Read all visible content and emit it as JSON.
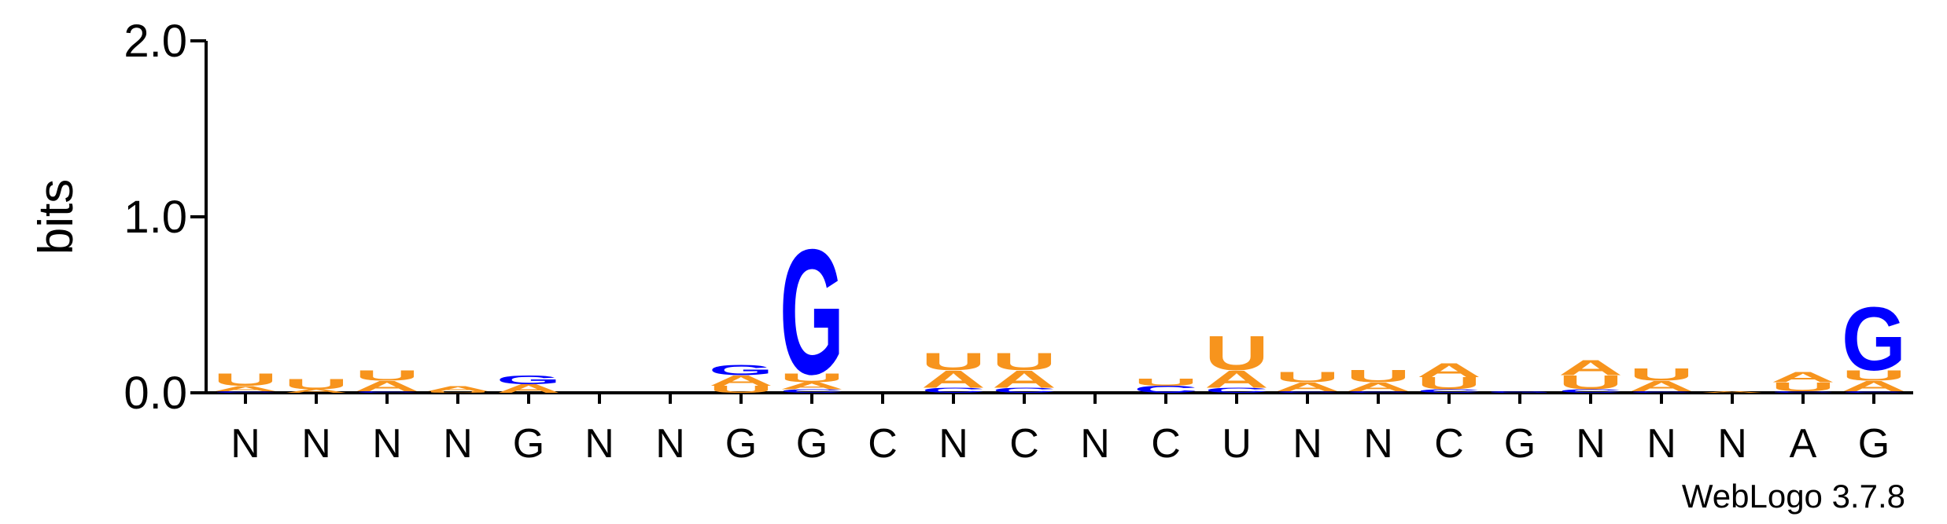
{
  "chart_data": {
    "type": "logo",
    "ylabel": "bits",
    "footer": "WebLogo 3.7.8",
    "ylim": [
      0,
      2
    ],
    "yticks": [
      {
        "value": 0,
        "label": "0.0"
      },
      {
        "value": 1,
        "label": "1.0"
      },
      {
        "value": 2,
        "label": "2.0"
      }
    ],
    "categories": [
      "N",
      "N",
      "N",
      "N",
      "G",
      "N",
      "N",
      "G",
      "G",
      "C",
      "N",
      "C",
      "N",
      "C",
      "U",
      "N",
      "N",
      "C",
      "G",
      "N",
      "N",
      "N",
      "A",
      "G"
    ],
    "series": [
      {
        "name": "A",
        "color": "#f7941d",
        "values": [
          0.03,
          0.02,
          0.06,
          0.03,
          0.05,
          0,
          0,
          0.06,
          0.04,
          0,
          0.1,
          0.1,
          0,
          0,
          0.1,
          0.05,
          0.05,
          0.08,
          0,
          0.09,
          0.06,
          0.01,
          0.06,
          0.06
        ]
      },
      {
        "name": "C",
        "color": "#0000ff",
        "values": [
          0.01,
          0,
          0.01,
          0,
          0,
          0,
          0,
          0,
          0.02,
          0,
          0.03,
          0.03,
          0,
          0.04,
          0.03,
          0.01,
          0.01,
          0.02,
          0,
          0.02,
          0.01,
          0,
          0.01,
          0.01
        ]
      },
      {
        "name": "G",
        "color": "#0000ff",
        "values": [
          0,
          0,
          0,
          0,
          0.05,
          0,
          0,
          0.06,
          0.73,
          0,
          0,
          0,
          0,
          0,
          0,
          0,
          0,
          0,
          0.01,
          0,
          0,
          0,
          0,
          0.37
        ]
      },
      {
        "name": "U",
        "color": "#f7941d",
        "values": [
          0.07,
          0.06,
          0.06,
          0.01,
          0,
          0,
          0,
          0.04,
          0.05,
          0,
          0.1,
          0.1,
          0,
          0.04,
          0.2,
          0.06,
          0.07,
          0.07,
          0,
          0.08,
          0.07,
          0,
          0.05,
          0.06
        ]
      }
    ]
  }
}
